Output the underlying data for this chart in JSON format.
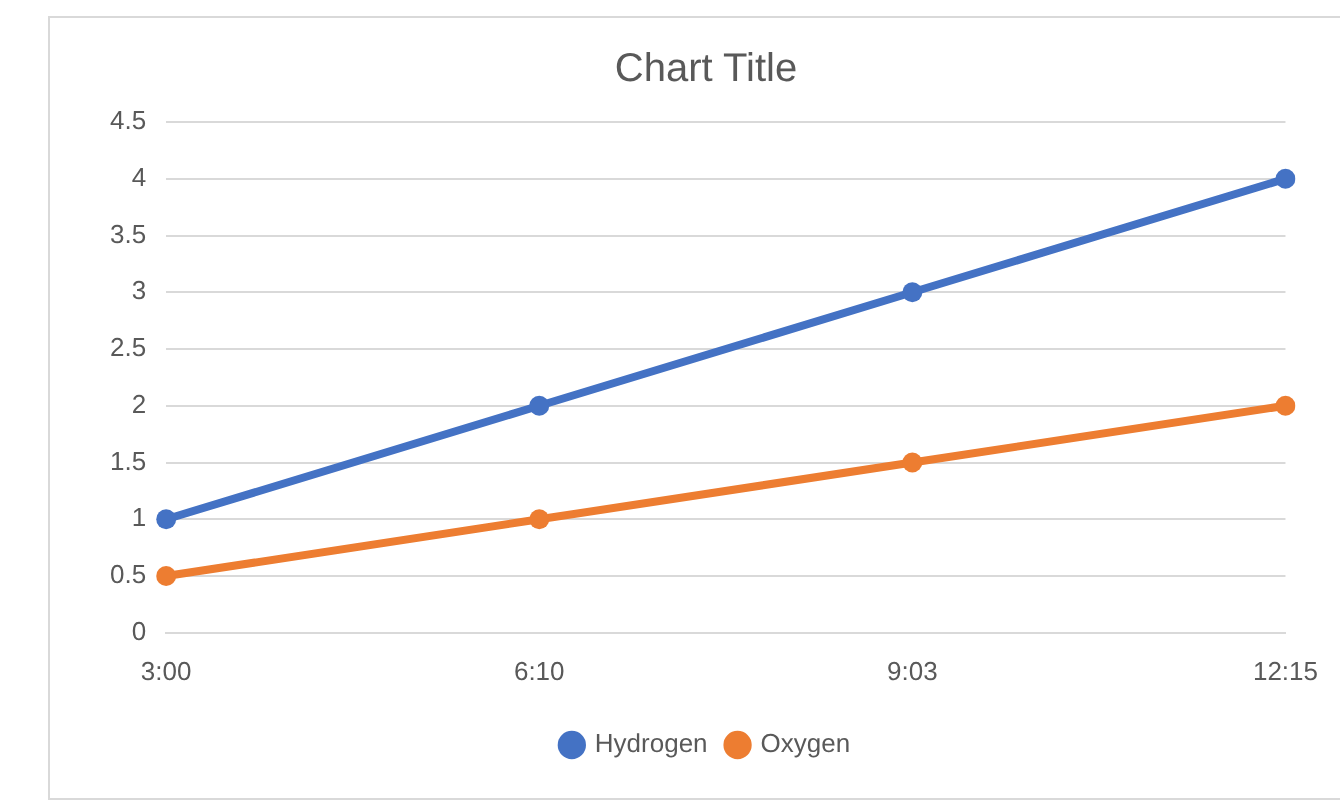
{
  "chart_data": {
    "type": "line",
    "title": "Chart Title",
    "categories": [
      "3:00",
      "6:10",
      "9:03",
      "12:15"
    ],
    "series": [
      {
        "name": "Hydrogen",
        "color": "#4472c4",
        "values": [
          1,
          2,
          3,
          4
        ]
      },
      {
        "name": "Oxygen",
        "color": "#ed7d31",
        "values": [
          0.5,
          1,
          1.5,
          2
        ]
      }
    ],
    "ylim": [
      0,
      4.5
    ],
    "yticks": [
      0,
      0.5,
      1,
      1.5,
      2,
      2.5,
      3,
      3.5,
      4,
      4.5
    ],
    "grid": "y",
    "legend": "bottom",
    "marker": "circle",
    "line_style": "solid"
  }
}
